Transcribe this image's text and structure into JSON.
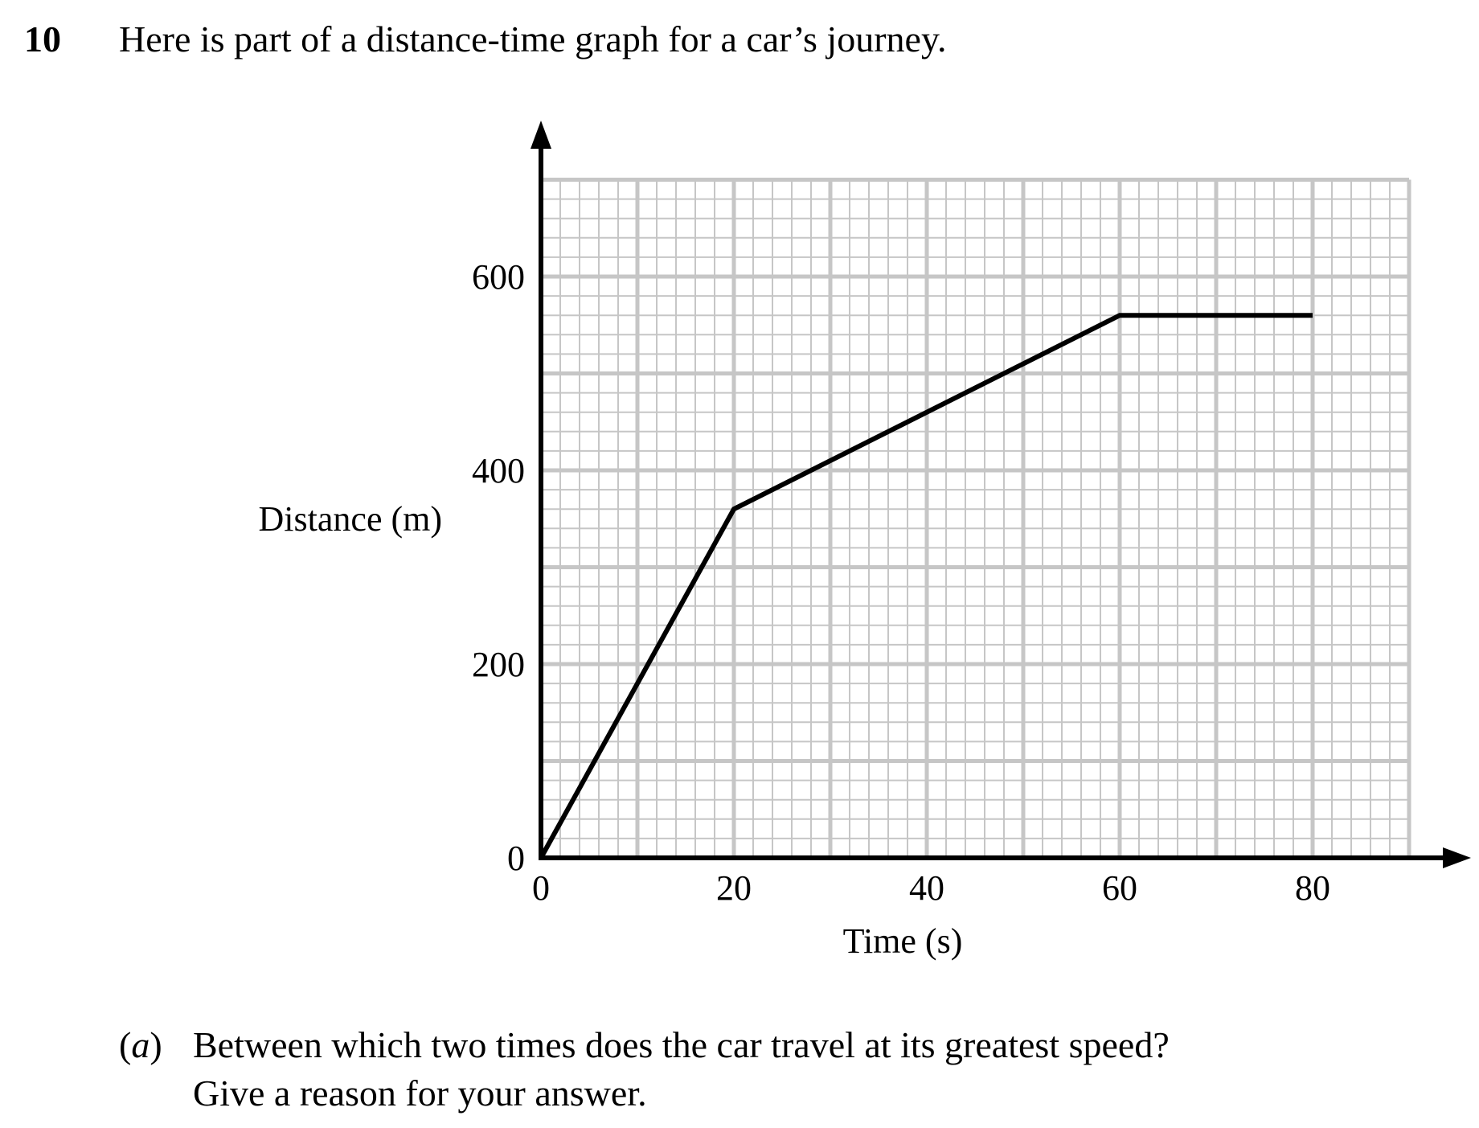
{
  "question": {
    "number": "10",
    "text": "Here is part of a distance-time graph for a car’s journey."
  },
  "chart_data": {
    "type": "line",
    "title": "",
    "xlabel": "Time (s)",
    "ylabel": "Distance (m)",
    "xlim": [
      0,
      90
    ],
    "ylim": [
      0,
      700
    ],
    "x_ticks": [
      0,
      20,
      40,
      60,
      80
    ],
    "x_tick_labels": [
      "0",
      "20",
      "40",
      "60",
      "80"
    ],
    "y_ticks": [
      0,
      200,
      400,
      600
    ],
    "y_tick_labels": [
      "0",
      "200",
      "400",
      "600"
    ],
    "grid": true,
    "grid_major_x": 10,
    "grid_major_y": 100,
    "grid_minor_x": 2,
    "grid_minor_y": 20,
    "colors": {
      "line": "#000000",
      "grid": "#c6c6c6",
      "axis": "#000000"
    },
    "series": [
      {
        "x": [
          0,
          20,
          60,
          80
        ],
        "y": [
          0,
          360,
          560,
          560
        ]
      }
    ]
  },
  "part_a": {
    "label_open": "(",
    "label_letter": "a",
    "label_close": ")",
    "line1": "Between which two times does the car travel at its greatest speed?",
    "line2": "Give a reason for your answer."
  }
}
